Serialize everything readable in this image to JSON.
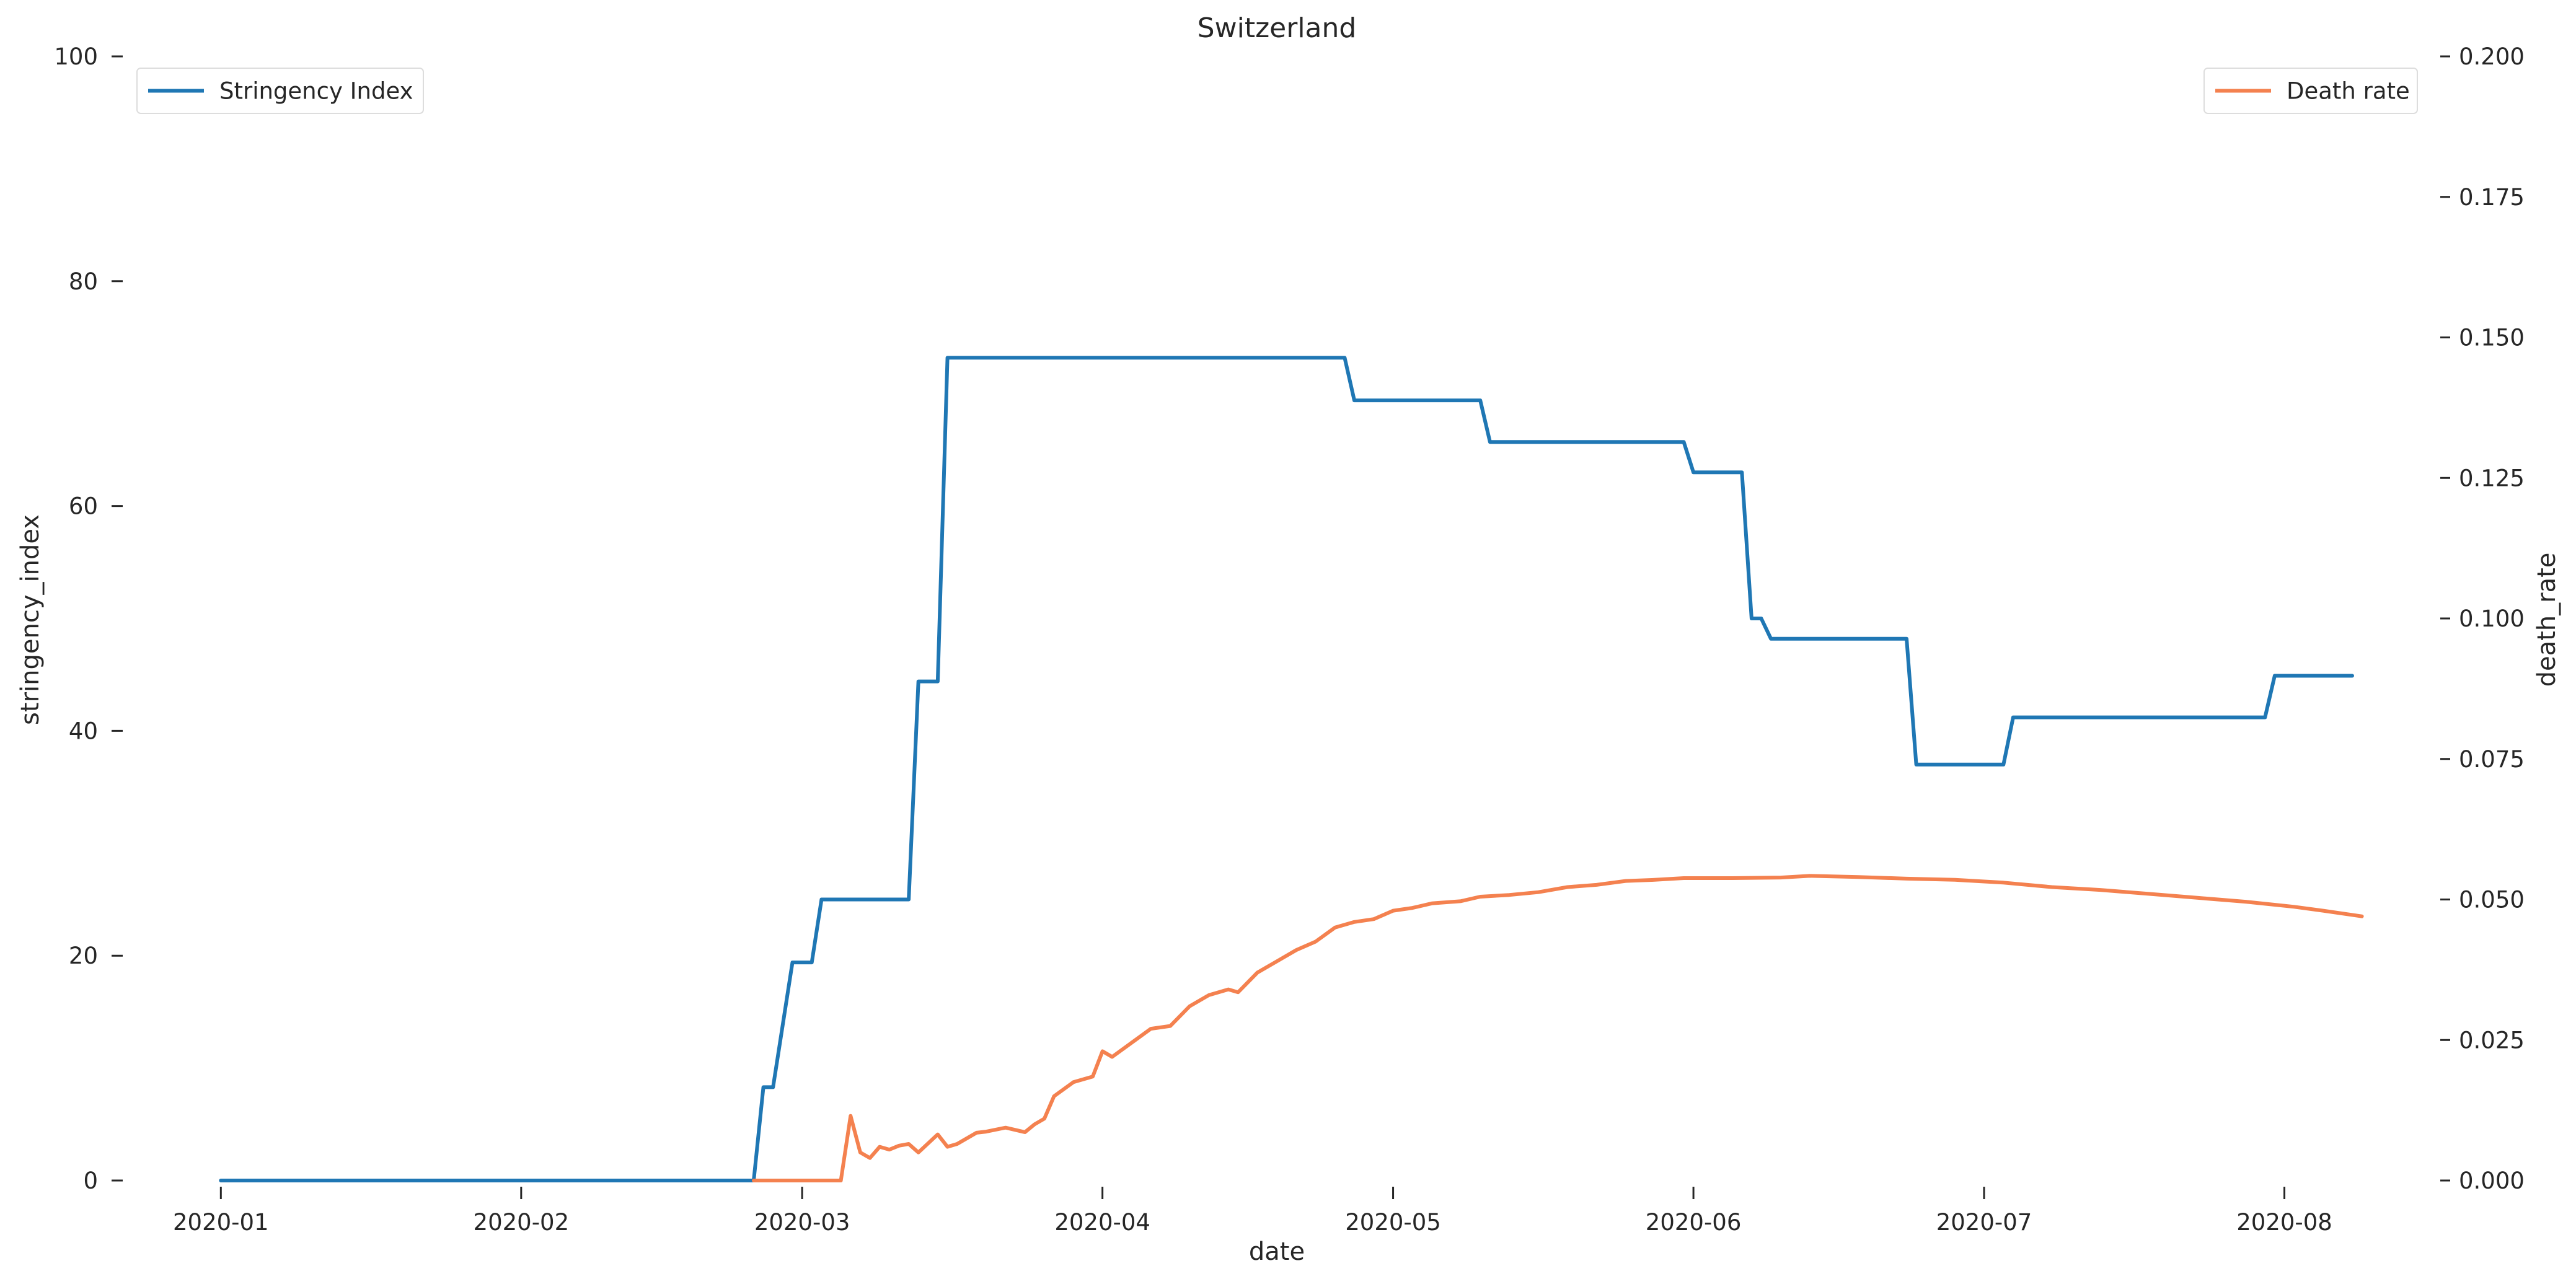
{
  "chart_data": {
    "type": "line",
    "title": "Switzerland",
    "xlabel": "date",
    "ylabel_left": "stringency_index",
    "ylabel_right": "death_rate",
    "x_range": [
      "2019-12-22",
      "2020-08-16"
    ],
    "x_ticks": [
      "2020-01",
      "2020-02",
      "2020-03",
      "2020-04",
      "2020-05",
      "2020-06",
      "2020-07",
      "2020-08"
    ],
    "y_left_range": [
      0,
      100
    ],
    "y_left_ticks": [
      "0",
      "20",
      "40",
      "60",
      "80",
      "100"
    ],
    "y_right_range": [
      0,
      0.2
    ],
    "y_right_ticks": [
      "0.000",
      "0.025",
      "0.050",
      "0.075",
      "0.100",
      "0.125",
      "0.150",
      "0.175",
      "0.200"
    ],
    "grid": false,
    "series": [
      {
        "name": "Stringency Index",
        "axis": "left",
        "color": "#1f77b4",
        "points": [
          [
            "2020-01-01",
            0
          ],
          [
            "2020-02-25",
            0
          ],
          [
            "2020-02-26",
            8.3
          ],
          [
            "2020-02-27",
            8.3
          ],
          [
            "2020-02-29",
            19.4
          ],
          [
            "2020-03-02",
            19.4
          ],
          [
            "2020-03-03",
            25
          ],
          [
            "2020-03-12",
            25
          ],
          [
            "2020-03-13",
            44.4
          ],
          [
            "2020-03-15",
            44.4
          ],
          [
            "2020-03-16",
            73.2
          ],
          [
            "2020-04-26",
            73.2
          ],
          [
            "2020-04-27",
            69.4
          ],
          [
            "2020-05-10",
            69.4
          ],
          [
            "2020-05-11",
            65.7
          ],
          [
            "2020-05-31",
            65.7
          ],
          [
            "2020-06-01",
            63
          ],
          [
            "2020-06-06",
            63
          ],
          [
            "2020-06-07",
            50
          ],
          [
            "2020-06-08",
            50
          ],
          [
            "2020-06-09",
            48.2
          ],
          [
            "2020-06-23",
            48.2
          ],
          [
            "2020-06-24",
            37
          ],
          [
            "2020-07-03",
            37
          ],
          [
            "2020-07-04",
            41.2
          ],
          [
            "2020-07-30",
            41.2
          ],
          [
            "2020-07-31",
            44.9
          ],
          [
            "2020-08-08",
            44.9
          ]
        ]
      },
      {
        "name": "Death rate",
        "axis": "right",
        "color": "#f4814f",
        "points": [
          [
            "2020-02-25",
            0
          ],
          [
            "2020-03-05",
            0
          ],
          [
            "2020-03-06",
            0.0115
          ],
          [
            "2020-03-07",
            0.005
          ],
          [
            "2020-03-08",
            0.004
          ],
          [
            "2020-03-09",
            0.006
          ],
          [
            "2020-03-10",
            0.0055
          ],
          [
            "2020-03-11",
            0.0062
          ],
          [
            "2020-03-12",
            0.0065
          ],
          [
            "2020-03-13",
            0.005
          ],
          [
            "2020-03-15",
            0.0082
          ],
          [
            "2020-03-16",
            0.006
          ],
          [
            "2020-03-17",
            0.0065
          ],
          [
            "2020-03-19",
            0.0085
          ],
          [
            "2020-03-20",
            0.0087
          ],
          [
            "2020-03-22",
            0.0094
          ],
          [
            "2020-03-24",
            0.0086
          ],
          [
            "2020-03-25",
            0.01
          ],
          [
            "2020-03-26",
            0.011
          ],
          [
            "2020-03-27",
            0.015
          ],
          [
            "2020-03-29",
            0.0175
          ],
          [
            "2020-03-31",
            0.0185
          ],
          [
            "2020-04-01",
            0.023
          ],
          [
            "2020-04-02",
            0.022
          ],
          [
            "2020-04-04",
            0.0245
          ],
          [
            "2020-04-06",
            0.027
          ],
          [
            "2020-04-08",
            0.0275
          ],
          [
            "2020-04-10",
            0.031
          ],
          [
            "2020-04-12",
            0.033
          ],
          [
            "2020-04-14",
            0.034
          ],
          [
            "2020-04-15",
            0.0335
          ],
          [
            "2020-04-17",
            0.037
          ],
          [
            "2020-04-19",
            0.039
          ],
          [
            "2020-04-21",
            0.041
          ],
          [
            "2020-04-23",
            0.0425
          ],
          [
            "2020-04-25",
            0.045
          ],
          [
            "2020-04-27",
            0.046
          ],
          [
            "2020-04-29",
            0.0465
          ],
          [
            "2020-05-01",
            0.048
          ],
          [
            "2020-05-03",
            0.0485
          ],
          [
            "2020-05-05",
            0.0493
          ],
          [
            "2020-05-08",
            0.0497
          ],
          [
            "2020-05-10",
            0.0505
          ],
          [
            "2020-05-13",
            0.0508
          ],
          [
            "2020-05-16",
            0.0513
          ],
          [
            "2020-05-19",
            0.0522
          ],
          [
            "2020-05-22",
            0.0526
          ],
          [
            "2020-05-25",
            0.0533
          ],
          [
            "2020-05-28",
            0.0535
          ],
          [
            "2020-05-31",
            0.0538
          ],
          [
            "2020-06-05",
            0.0538
          ],
          [
            "2020-06-10",
            0.0539
          ],
          [
            "2020-06-13",
            0.0542
          ],
          [
            "2020-06-18",
            0.054
          ],
          [
            "2020-06-23",
            0.0537
          ],
          [
            "2020-06-28",
            0.0535
          ],
          [
            "2020-07-03",
            0.053
          ],
          [
            "2020-07-08",
            0.0522
          ],
          [
            "2020-07-13",
            0.0517
          ],
          [
            "2020-07-18",
            0.051
          ],
          [
            "2020-07-23",
            0.0503
          ],
          [
            "2020-07-28",
            0.0496
          ],
          [
            "2020-08-02",
            0.0487
          ],
          [
            "2020-08-05",
            0.048
          ],
          [
            "2020-08-09",
            0.047
          ]
        ]
      }
    ],
    "legends": [
      {
        "label": "Stringency Index",
        "placement": "top-left"
      },
      {
        "label": "Death rate",
        "placement": "top-right"
      }
    ]
  }
}
